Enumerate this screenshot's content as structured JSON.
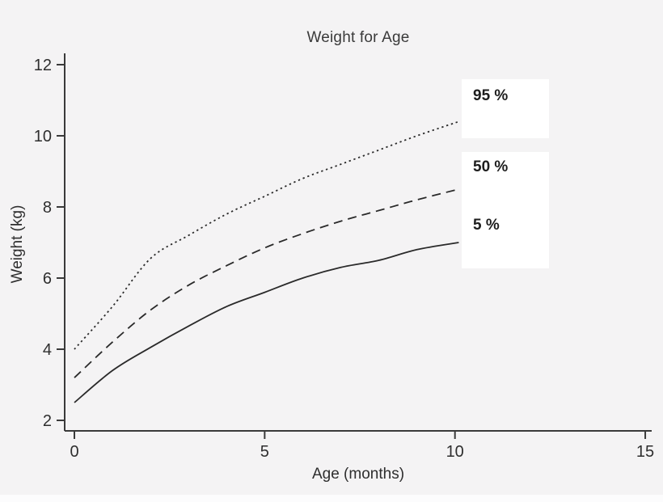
{
  "figure": {
    "background_color": "#f4f3f4",
    "line_color": "#2a2a2a",
    "axis_color": "#3a3a3a",
    "legend_bg_color": "#ffffff"
  },
  "chart_data": {
    "type": "line",
    "title": "Weight for Age",
    "xlabel": "Age (months)",
    "ylabel": "Weight (kg)",
    "xlim": [
      0,
      15.3
    ],
    "ylim": [
      1.7,
      12.4
    ],
    "x_ticks": [
      0,
      5,
      10,
      15
    ],
    "y_ticks": [
      2,
      4,
      6,
      8,
      10,
      12
    ],
    "grid": false,
    "legend_position": "right-overlay",
    "x": [
      0,
      1,
      2,
      3,
      4,
      5,
      6,
      7,
      8,
      9,
      10.1
    ],
    "series": [
      {
        "name": "95 %",
        "style": "dotted",
        "values": [
          4.0,
          5.2,
          6.55,
          7.2,
          7.8,
          8.3,
          8.8,
          9.2,
          9.6,
          10.0,
          10.4
        ]
      },
      {
        "name": "50 %",
        "style": "dashed",
        "values": [
          3.2,
          4.2,
          5.1,
          5.8,
          6.35,
          6.85,
          7.25,
          7.6,
          7.9,
          8.2,
          8.5
        ]
      },
      {
        "name": "5 %",
        "style": "solid",
        "values": [
          2.5,
          3.4,
          4.05,
          4.65,
          5.2,
          5.6,
          6.0,
          6.3,
          6.5,
          6.8,
          7.0
        ]
      }
    ]
  }
}
